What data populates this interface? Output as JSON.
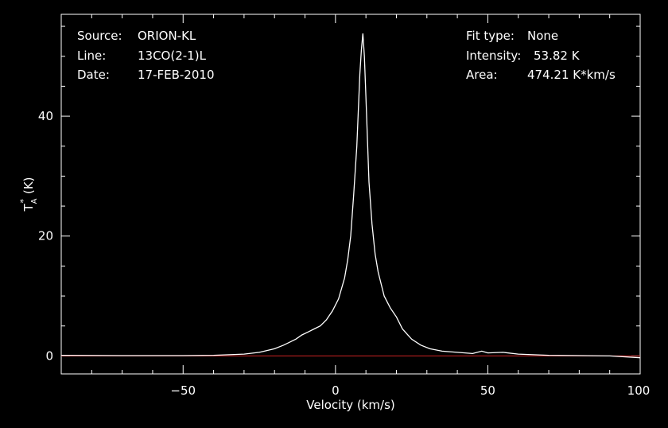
{
  "colors": {
    "background": "#000000",
    "foreground": "#ffffff",
    "baseline": "#cc2222"
  },
  "info": {
    "source_label": "Source:",
    "source_value": "ORION-KL",
    "line_label": "Line:",
    "line_value": "13CO(2-1)L",
    "date_label": "Date:",
    "date_value": "17-FEB-2010",
    "fit_label": "Fit type:",
    "fit_value": "None",
    "intensity_label": "Intensity:",
    "intensity_value": "53.82 K",
    "area_label": "Area:",
    "area_value": "474.21 K*km/s"
  },
  "chart_data": {
    "type": "line",
    "title": "",
    "xlabel": "Velocity (km/s)",
    "ylabel": "TA* (K)",
    "ylabel_parts": {
      "main": "T",
      "sub": "A",
      "sup": "*",
      "unit": "(K)"
    },
    "xlim": [
      -90,
      100
    ],
    "ylim": [
      -3,
      57
    ],
    "xticks": [
      -50,
      0,
      50,
      100
    ],
    "xtick_labels": [
      "−50",
      "0",
      "50",
      "100"
    ],
    "yticks": [
      0,
      20,
      40
    ],
    "ytick_labels": [
      "0",
      "20",
      "40"
    ],
    "grid": false,
    "baseline_y": 0,
    "series": [
      {
        "x": [
          -90,
          -70,
          -50,
          -40,
          -30,
          -25,
          -20,
          -17,
          -15,
          -13,
          -11,
          -9,
          -7,
          -5,
          -3,
          -1,
          1,
          3,
          4,
          5,
          6,
          7,
          7.5,
          8,
          8.5,
          9,
          9.5,
          10,
          10.5,
          11,
          12,
          13,
          14,
          16,
          18,
          20,
          22,
          25,
          28,
          31,
          35,
          40,
          45,
          48,
          50,
          55,
          60,
          70,
          80,
          90,
          100
        ],
        "y": [
          0.1,
          0.05,
          0.05,
          0.1,
          0.3,
          0.6,
          1.2,
          1.8,
          2.3,
          2.8,
          3.5,
          4.0,
          4.5,
          5.0,
          6.0,
          7.5,
          9.5,
          13,
          16,
          20,
          27,
          35,
          41,
          47,
          51,
          53.82,
          50,
          43,
          36,
          29,
          22,
          17,
          14,
          10,
          8,
          6.5,
          4.5,
          2.8,
          1.8,
          1.2,
          0.8,
          0.6,
          0.4,
          0.8,
          0.5,
          0.6,
          0.3,
          0.1,
          0.05,
          0.0,
          -0.3
        ]
      }
    ]
  }
}
